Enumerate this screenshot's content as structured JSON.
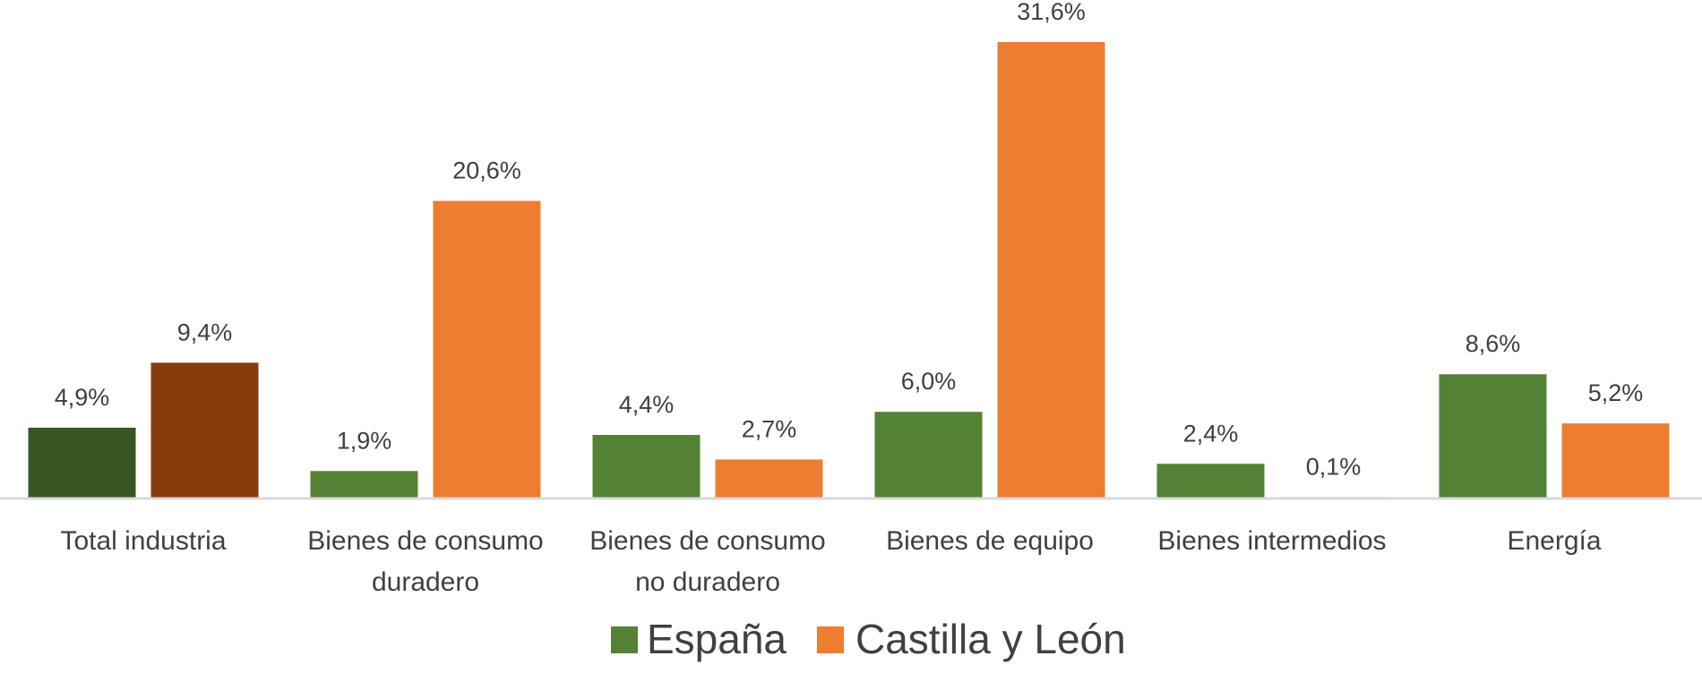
{
  "chart_data": {
    "type": "bar",
    "categories": [
      [
        "Total industria"
      ],
      [
        "Bienes de consumo",
        "duradero"
      ],
      [
        "Bienes de consumo",
        "no duradero"
      ],
      [
        "Bienes de equipo"
      ],
      [
        "Bienes intermedios"
      ],
      [
        "Energía"
      ]
    ],
    "series": [
      {
        "name": "España",
        "color": "#548235",
        "values": [
          4.9,
          1.9,
          4.4,
          6.0,
          2.4,
          8.6
        ],
        "labels": [
          "4,9%",
          "1,9%",
          "4,4%",
          "6,0%",
          "2,4%",
          "8,6%"
        ]
      },
      {
        "name": "Castilla y León",
        "color": "#ED7D31",
        "values": [
          9.4,
          20.6,
          2.7,
          31.6,
          0.1,
          5.2
        ],
        "labels": [
          "9,4%",
          "20,6%",
          "2,7%",
          "31,6%",
          "0,1%",
          "5,2%"
        ]
      }
    ],
    "highlight": {
      "category_index": 0,
      "colors": [
        "#375623",
        "#843C0C"
      ]
    },
    "ylim": [
      0,
      32
    ],
    "grid": false,
    "legend": "bottom"
  }
}
